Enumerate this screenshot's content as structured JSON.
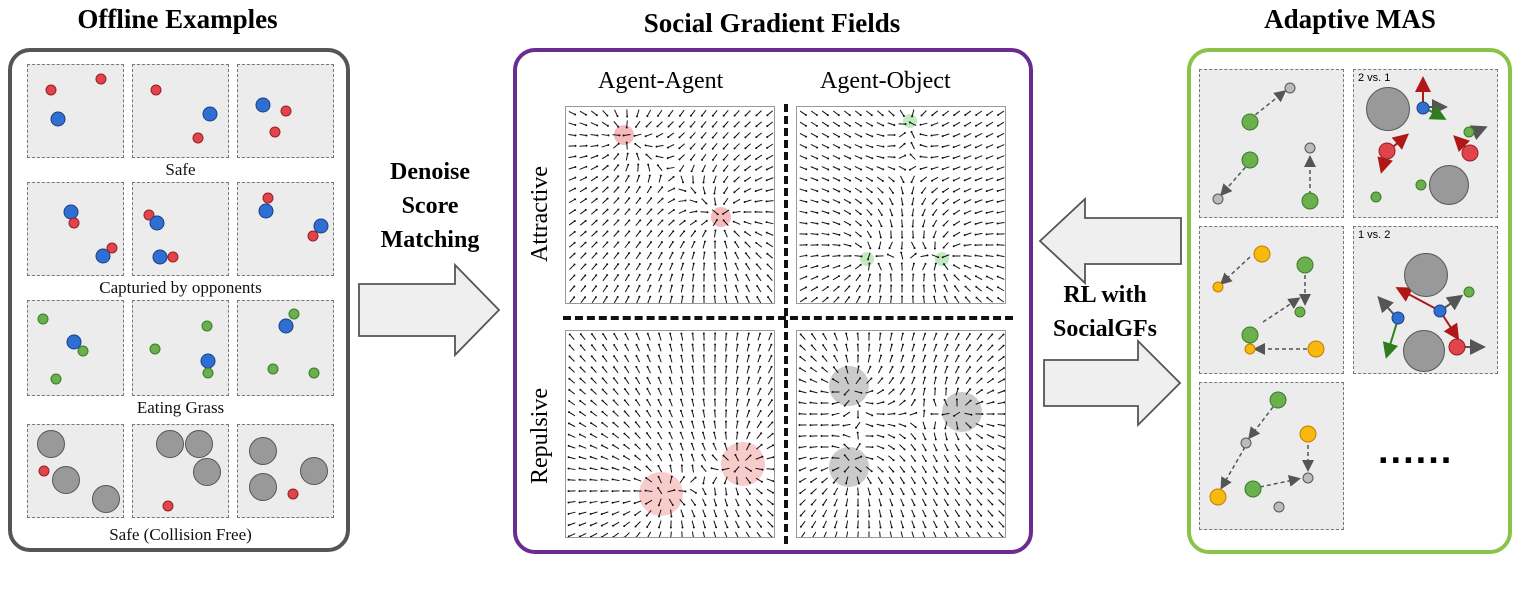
{
  "sections": {
    "offline": {
      "title": "Offline Examples",
      "captions": [
        "Safe",
        "Capturied by opponents",
        "Eating Grass",
        "Safe (Collision Free)"
      ],
      "border_color": "#555555"
    },
    "social": {
      "title": "Social Gradient Fields",
      "col_labels": [
        "Agent-Agent",
        "Agent-Object"
      ],
      "row_labels": [
        "Attractive",
        "Repulsive"
      ],
      "border_color": "#6a2c91"
    },
    "adaptive": {
      "title": "Adaptive MAS",
      "cell_labels": [
        "2 vs. 1",
        "1 vs. 2"
      ],
      "ellipsis": "......",
      "border_color": "#8bc34a"
    }
  },
  "arrows": {
    "denoise": {
      "lines": [
        "Denoise",
        "Score",
        "Matching"
      ]
    },
    "rl": {
      "lines": [
        "RL with",
        "SocialGFs"
      ]
    }
  },
  "colors": {
    "red": "#e0454b",
    "blue": "#2f6fd4",
    "green": "#6ab04c",
    "gray": "#999999",
    "yellow": "#f8b90f",
    "cell_bg": "#ececec"
  }
}
